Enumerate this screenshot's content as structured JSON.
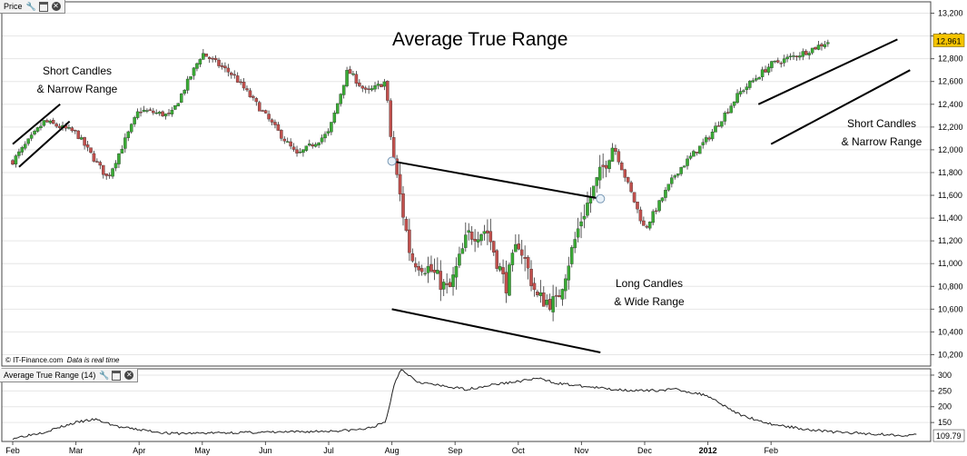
{
  "price_panel": {
    "tab_label": "Price",
    "title": "Average True Range",
    "credit_source": "© IT-Finance.com",
    "credit_note": "Data is real time",
    "last_value": "12,961",
    "annotations": [
      {
        "line1": "Short Candles",
        "line2": "& Narrow Range"
      },
      {
        "line1": "Long Candles",
        "line2": "& Wide Range"
      },
      {
        "line1": "Short Candles",
        "line2": "& Narrow Range"
      }
    ]
  },
  "atr_panel": {
    "tab_label": "Average True Range (14)",
    "last_value": "109.79"
  },
  "colors": {
    "up_candle": "#3aaa35",
    "down_candle": "#c0504d",
    "wick": "#333333",
    "last_value_badge": "#f5c400"
  },
  "chart_data": [
    {
      "type": "candlestick",
      "title": "Average True Range",
      "x_ticks": [
        "Feb",
        "Mar",
        "Apr",
        "May",
        "Jun",
        "Jul",
        "Aug",
        "Sep",
        "Oct",
        "Nov",
        "Dec",
        "2012",
        "Feb"
      ],
      "y_ticks": [
        10200,
        10400,
        10600,
        10800,
        11000,
        11200,
        11400,
        11600,
        11800,
        12000,
        12200,
        12400,
        12600,
        12800,
        13000,
        13200
      ],
      "y_tick_labels": [
        "10,200",
        "10,400",
        "10,600",
        "10,800",
        "11,000",
        "11,200",
        "11,400",
        "11,600",
        "11,800",
        "12,000",
        "12,200",
        "12,400",
        "12,600",
        "12,800",
        "13,000",
        "13,200"
      ],
      "ylim": [
        10100,
        13300
      ],
      "close_path_months": [
        0,
        0.5,
        1,
        1.5,
        2,
        2.5,
        3,
        3.5,
        4,
        4.5,
        5,
        5.3,
        5.6,
        5.9,
        6,
        6.3,
        6.6,
        6.9,
        7.2,
        7.5,
        7.8,
        8,
        8.3,
        8.6,
        9,
        9.5,
        10,
        10.5,
        11,
        11.5,
        12,
        12.5,
        12.9
      ],
      "close_path_values": [
        11900,
        12250,
        12150,
        11750,
        12350,
        12300,
        12850,
        12650,
        12300,
        11950,
        12150,
        12700,
        12500,
        12600,
        12000,
        11050,
        10950,
        10750,
        11250,
        11300,
        10800,
        11200,
        10700,
        10650,
        11400,
        12050,
        11300,
        11800,
        12100,
        12500,
        12750,
        12850,
        12950
      ],
      "series": [
        {
          "name": "",
          "kind": "trendline",
          "x": [
            0,
            0.75
          ],
          "y": [
            12050,
            12400
          ]
        },
        {
          "name": "",
          "kind": "trendline",
          "x": [
            0.1,
            0.9
          ],
          "y": [
            11850,
            12250
          ]
        },
        {
          "name": "",
          "kind": "trendline",
          "x": [
            6,
            9.3
          ],
          "y": [
            11900,
            11570
          ]
        },
        {
          "name": "",
          "kind": "trendline",
          "x": [
            6,
            9.3
          ],
          "y": [
            10600,
            10220
          ]
        },
        {
          "name": "",
          "kind": "trendline",
          "x": [
            11.8,
            14
          ],
          "y": [
            12400,
            12970
          ]
        },
        {
          "name": "",
          "kind": "trendline",
          "x": [
            12,
            14.2
          ],
          "y": [
            12050,
            12700
          ]
        }
      ],
      "markers": [
        {
          "x": 6,
          "y": 11900
        },
        {
          "x": 9.3,
          "y": 11570
        }
      ]
    },
    {
      "type": "line",
      "title": "Average True Range (14)",
      "y_ticks": [
        150,
        200,
        250,
        300
      ],
      "ylim": [
        90,
        320
      ],
      "series": [
        {
          "name": "",
          "x": [
            0,
            0.5,
            1,
            1.3,
            1.7,
            2.5,
            3.5,
            4.5,
            5.3,
            5.6,
            5.9,
            6.05,
            6.15,
            6.4,
            6.8,
            7.2,
            7.6,
            8,
            8.3,
            8.6,
            9,
            9.5,
            10,
            10.5,
            11,
            11.5,
            12,
            12.5,
            13,
            13.5,
            14,
            14.3
          ],
          "y": [
            100,
            120,
            150,
            160,
            135,
            115,
            118,
            120,
            125,
            130,
            150,
            280,
            320,
            280,
            265,
            255,
            270,
            280,
            290,
            275,
            265,
            255,
            250,
            255,
            235,
            175,
            145,
            130,
            120,
            115,
            110,
            110
          ]
        }
      ]
    }
  ]
}
